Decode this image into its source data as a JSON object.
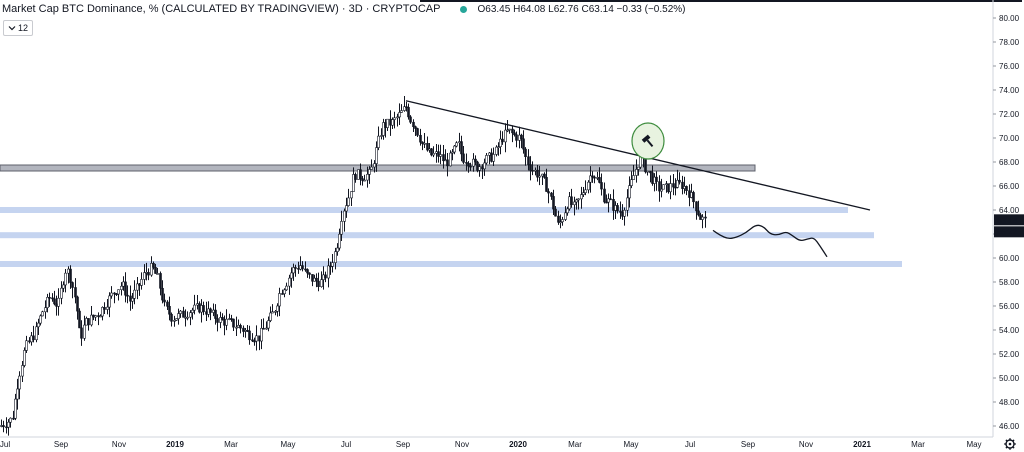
{
  "header": {
    "symbol": "Market Cap BTC Dominance, % (CALCULATED BY TRADINGVIEW) · 3D · CRYPTOCAP",
    "open_label": "O",
    "open": "63.45",
    "high_label": "H",
    "high": "64.08",
    "low_label": "L",
    "low": "62.76",
    "close_label": "C",
    "close": "63.14",
    "change": "−0.33 (−0.52%)",
    "status_color": "#26a69a"
  },
  "study_badge": {
    "icon": "chevron-down-icon",
    "value": "12"
  },
  "settings_icon": "gear-icon",
  "chart_data": {
    "type": "candlestick",
    "y_axis": {
      "position": "right",
      "range": [
        45.5,
        81.0
      ],
      "ticks": [
        "80.00",
        "78.00",
        "76.00",
        "74.00",
        "72.00",
        "70.00",
        "68.00",
        "66.00",
        "64.00",
        "62.00",
        "60.00",
        "58.00",
        "56.00",
        "54.00",
        "52.00",
        "50.00",
        "48.00",
        "46.00"
      ]
    },
    "x_axis": {
      "ticks": [
        "Jul",
        "Sep",
        "Nov",
        "2019",
        "Mar",
        "May",
        "Jul",
        "Sep",
        "Nov",
        "2020",
        "Mar",
        "May",
        "Jul",
        "Sep",
        "Nov",
        "2021",
        "Mar",
        "May"
      ],
      "bold_ticks": [
        "2019",
        "2020",
        "2021"
      ]
    },
    "last_price_label": "63.14",
    "countdown_label": "05:22",
    "grid": false,
    "price_path": [
      [
        0,
        46.0
      ],
      [
        12,
        46.6
      ],
      [
        18,
        50.0
      ],
      [
        25,
        52.5
      ],
      [
        35,
        53.8
      ],
      [
        42,
        55.5
      ],
      [
        50,
        56.8
      ],
      [
        58,
        56.0
      ],
      [
        62,
        57.8
      ],
      [
        66,
        59.2
      ],
      [
        70,
        58.4
      ],
      [
        76,
        56.3
      ],
      [
        80,
        53.2
      ],
      [
        85,
        54.6
      ],
      [
        95,
        55.2
      ],
      [
        100,
        55.5
      ],
      [
        108,
        56.5
      ],
      [
        115,
        57.3
      ],
      [
        122,
        57.8
      ],
      [
        130,
        56.4
      ],
      [
        138,
        57.6
      ],
      [
        145,
        58.8
      ],
      [
        152,
        59.2
      ],
      [
        158,
        58.2
      ],
      [
        164,
        56.0
      ],
      [
        172,
        55.0
      ],
      [
        180,
        55.2
      ],
      [
        190,
        55.6
      ],
      [
        200,
        55.9
      ],
      [
        210,
        55.4
      ],
      [
        220,
        54.8
      ],
      [
        230,
        54.6
      ],
      [
        240,
        54.2
      ],
      [
        250,
        53.6
      ],
      [
        258,
        53.3
      ],
      [
        266,
        54.4
      ],
      [
        274,
        55.6
      ],
      [
        280,
        57.2
      ],
      [
        285,
        57.8
      ],
      [
        292,
        59.0
      ],
      [
        300,
        59.4
      ],
      [
        306,
        58.6
      ],
      [
        314,
        58.1
      ],
      [
        322,
        58.0
      ],
      [
        330,
        59.4
      ],
      [
        336,
        60.8
      ],
      [
        342,
        63.8
      ],
      [
        348,
        65.0
      ],
      [
        354,
        67.0
      ],
      [
        362,
        66.8
      ],
      [
        370,
        67.0
      ],
      [
        376,
        69.0
      ],
      [
        382,
        71.0
      ],
      [
        392,
        71.3
      ],
      [
        400,
        72.0
      ],
      [
        406,
        72.6
      ],
      [
        410,
        71.6
      ],
      [
        416,
        70.8
      ],
      [
        422,
        69.5
      ],
      [
        430,
        68.6
      ],
      [
        438,
        68.6
      ],
      [
        446,
        67.9
      ],
      [
        452,
        68.6
      ],
      [
        458,
        69.6
      ],
      [
        462,
        68.4
      ],
      [
        470,
        68.0
      ],
      [
        478,
        67.6
      ],
      [
        486,
        68.2
      ],
      [
        494,
        68.6
      ],
      [
        502,
        70.0
      ],
      [
        508,
        70.6
      ],
      [
        514,
        70.2
      ],
      [
        520,
        70.0
      ],
      [
        526,
        68.2
      ],
      [
        532,
        67.4
      ],
      [
        540,
        66.8
      ],
      [
        546,
        66.0
      ],
      [
        552,
        64.6
      ],
      [
        558,
        62.6
      ],
      [
        562,
        63.4
      ],
      [
        568,
        64.8
      ],
      [
        574,
        64.2
      ],
      [
        580,
        65.0
      ],
      [
        586,
        66.2
      ],
      [
        592,
        67.2
      ],
      [
        598,
        66.4
      ],
      [
        604,
        65.0
      ],
      [
        610,
        64.6
      ],
      [
        616,
        64.0
      ],
      [
        622,
        63.8
      ],
      [
        628,
        65.4
      ],
      [
        634,
        67.0
      ],
      [
        640,
        68.4
      ],
      [
        646,
        67.4
      ],
      [
        652,
        66.6
      ],
      [
        658,
        65.8
      ],
      [
        666,
        65.8
      ],
      [
        674,
        66.1
      ],
      [
        682,
        66.1
      ],
      [
        688,
        65.6
      ],
      [
        694,
        64.6
      ],
      [
        700,
        63.4
      ],
      [
        705,
        63.1
      ]
    ],
    "trendline": {
      "from": [
        "Sep 2019",
        73.1
      ],
      "to": [
        "Jan 2021",
        64.0
      ]
    },
    "horizontal_zones": [
      {
        "level": 67.5,
        "style": "gray-band",
        "color": "#9598a1"
      },
      {
        "level": 64.0,
        "style": "highlight",
        "color": "#c5d4f0"
      },
      {
        "level": 61.9,
        "style": "highlight",
        "color": "#c5d4f0"
      },
      {
        "level": 59.5,
        "style": "highlight",
        "color": "#c5d4f0"
      }
    ],
    "projection_path": [
      [
        713,
        62.3
      ],
      [
        720,
        61.9
      ],
      [
        728,
        61.6
      ],
      [
        736,
        61.7
      ],
      [
        746,
        62.1
      ],
      [
        756,
        62.8
      ],
      [
        764,
        62.6
      ],
      [
        770,
        62.0
      ],
      [
        778,
        61.9
      ],
      [
        786,
        62.2
      ],
      [
        792,
        61.9
      ],
      [
        800,
        61.4
      ],
      [
        808,
        61.6
      ],
      [
        814,
        61.7
      ],
      [
        820,
        61.0
      ],
      [
        827,
        60.1
      ]
    ],
    "annotation": {
      "type": "ellipse",
      "color": "#3d8c3d",
      "fill": "#e8f3e0",
      "icon": "hammer-icon"
    }
  }
}
